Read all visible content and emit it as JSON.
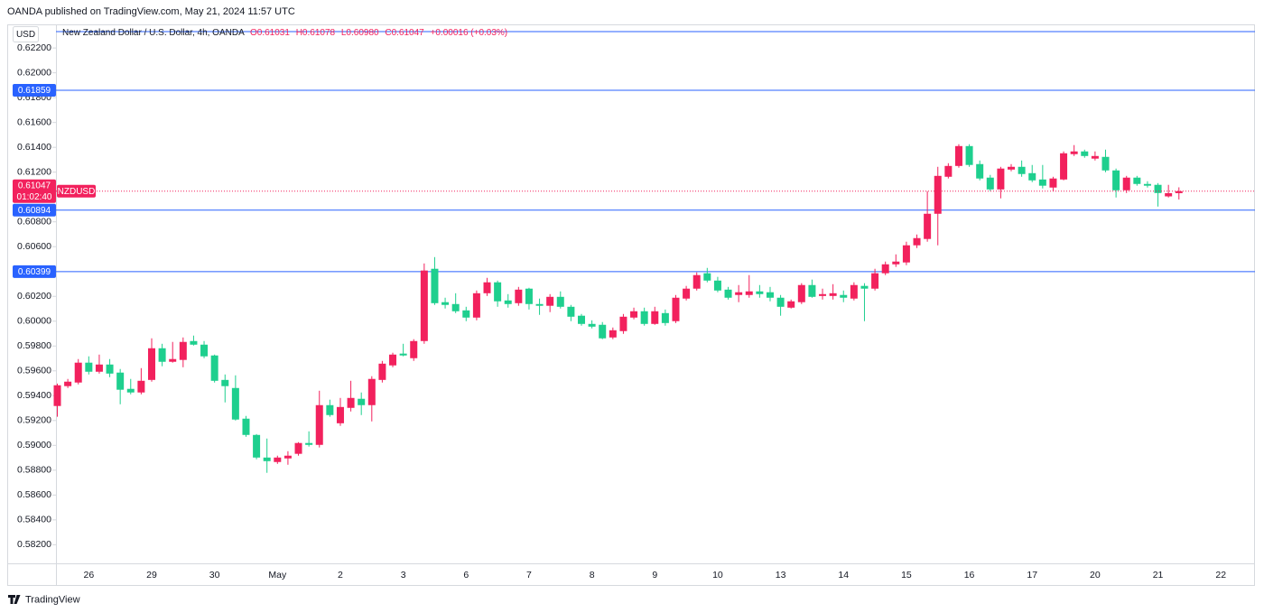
{
  "header": {
    "published": "OANDA published on TradingView.com, May 21, 2024 11:57 UTC"
  },
  "footer": {
    "brand": "TradingView"
  },
  "chart_data": {
    "type": "candlestick",
    "title": "New Zealand Dollar / U.S. Dollar, 4h, OANDA",
    "legend_values": [
      "O0.61031",
      "H0.61078",
      "L0.60980",
      "C0.61047",
      "+0.00016 (+0.03%)"
    ],
    "currency": "USD",
    "symbol": "NZDUSD",
    "countdown": "01:02:40",
    "up_color": "#f2215d",
    "down_color": "#1ecf8e",
    "line_color": "#2962ff",
    "grid": false,
    "current_price": {
      "value": 0.61047,
      "label": "0.61047"
    },
    "horizontal_lines": [
      {
        "value": 0.62332
      },
      {
        "value": 0.61859,
        "label": "0.61859"
      },
      {
        "value": 0.60894,
        "label": "0.60894"
      },
      {
        "value": 0.60399,
        "label": "0.60399"
      }
    ],
    "ylim": [
      0.5805,
      0.6239
    ],
    "yticks": [
      {
        "value": 0.582,
        "label": "0.58200"
      },
      {
        "value": 0.584,
        "label": "0.58400"
      },
      {
        "value": 0.586,
        "label": "0.58600"
      },
      {
        "value": 0.588,
        "label": "0.58800"
      },
      {
        "value": 0.59,
        "label": "0.59000"
      },
      {
        "value": 0.592,
        "label": "0.59200"
      },
      {
        "value": 0.594,
        "label": "0.59400"
      },
      {
        "value": 0.596,
        "label": "0.59600"
      },
      {
        "value": 0.598,
        "label": "0.59800"
      },
      {
        "value": 0.6,
        "label": "0.60000"
      },
      {
        "value": 0.602,
        "label": "0.60200"
      },
      {
        "value": 0.604,
        "label": "0.60400"
      },
      {
        "value": 0.606,
        "label": "0.60600"
      },
      {
        "value": 0.608,
        "label": "0.60800"
      },
      {
        "value": 0.61,
        "label": "0.61000"
      },
      {
        "value": 0.612,
        "label": "0.61200"
      },
      {
        "value": 0.614,
        "label": "0.61400"
      },
      {
        "value": 0.616,
        "label": "0.61600"
      },
      {
        "value": 0.618,
        "label": "0.61800"
      },
      {
        "value": 0.62,
        "label": "0.62000"
      },
      {
        "value": 0.622,
        "label": "0.62200"
      }
    ],
    "categories": [
      null,
      null,
      null,
      "26",
      null,
      null,
      null,
      null,
      null,
      "29",
      null,
      null,
      null,
      null,
      null,
      "30",
      null,
      null,
      null,
      null,
      null,
      "May",
      null,
      null,
      null,
      null,
      null,
      "2",
      null,
      null,
      null,
      null,
      null,
      "3",
      null,
      null,
      null,
      null,
      null,
      "6",
      null,
      null,
      null,
      null,
      null,
      "7",
      null,
      null,
      null,
      null,
      null,
      "8",
      null,
      null,
      null,
      null,
      null,
      "9",
      null,
      null,
      null,
      null,
      null,
      "10",
      null,
      null,
      null,
      null,
      null,
      "13",
      null,
      null,
      null,
      null,
      null,
      "14",
      null,
      null,
      null,
      null,
      null,
      "15",
      null,
      null,
      null,
      null,
      null,
      "16",
      null,
      null,
      null,
      null,
      null,
      "17",
      null,
      null,
      null,
      null,
      null,
      "20",
      null,
      null,
      null,
      null,
      null,
      "21",
      null,
      null,
      null,
      null,
      null,
      "22"
    ],
    "open": [
      0.59317,
      0.59477,
      0.59506,
      0.59666,
      0.59593,
      0.59651,
      0.59586,
      0.59455,
      0.59426,
      0.59527,
      0.59782,
      0.59673,
      0.59688,
      0.5984,
      0.59811,
      0.59724,
      0.59527,
      0.59462,
      0.59215,
      0.59084,
      0.58902,
      0.58866,
      0.58895,
      0.58932,
      0.59019,
      0.59004,
      0.59324,
      0.59178,
      0.59302,
      0.59375,
      0.59324,
      0.59527,
      0.59644,
      0.59739,
      0.59702,
      0.5984,
      0.60422,
      0.60153,
      0.60138,
      0.60087,
      0.60029,
      0.60225,
      0.60313,
      0.60167,
      0.60145,
      0.60262,
      0.60138,
      0.60124,
      0.60196,
      0.60116,
      0.60044,
      0.59978,
      0.59971,
      0.59869,
      0.5992,
      0.60029,
      0.6008,
      0.59978,
      0.60065,
      0.6,
      0.60182,
      0.60262,
      0.60386,
      0.60327,
      0.60254,
      0.60211,
      0.60211,
      0.6024,
      0.60233,
      0.60189,
      0.60109,
      0.60153,
      0.60291,
      0.60203,
      0.60203,
      0.60211,
      0.60182,
      0.60284,
      0.60262,
      0.60386,
      0.60458,
      0.60473,
      0.60611,
      0.60662,
      0.60865,
      0.61163,
      0.6125,
      0.6141,
      0.61265,
      0.61156,
      0.61061,
      0.61221,
      0.61243,
      0.61192,
      0.61141,
      0.61076,
      0.61141,
      0.61345,
      0.61367,
      0.61309,
      0.61323,
      0.61214,
      0.61054,
      0.61156,
      0.61105,
      0.61098,
      0.61005,
      0.61031,
      null,
      null,
      null,
      null
    ],
    "high": [
      0.59498,
      0.59535,
      0.59695,
      0.59717,
      0.59731,
      0.59695,
      0.59615,
      0.59535,
      0.59622,
      0.59862,
      0.59818,
      0.59833,
      0.59869,
      0.59884,
      0.5984,
      0.59731,
      0.59571,
      0.59564,
      0.59237,
      0.59091,
      0.59055,
      0.58917,
      0.58953,
      0.59026,
      0.59113,
      0.5944,
      0.59368,
      0.59382,
      0.5952,
      0.59426,
      0.59557,
      0.5968,
      0.59746,
      0.59818,
      0.59855,
      0.60465,
      0.60516,
      0.60189,
      0.60225,
      0.60116,
      0.60247,
      0.60349,
      0.60327,
      0.60218,
      0.60276,
      0.60269,
      0.60182,
      0.60218,
      0.6024,
      0.60131,
      0.60058,
      0.60007,
      0.59993,
      0.59949,
      0.60058,
      0.60109,
      0.60109,
      0.60116,
      0.60094,
      0.60211,
      0.60284,
      0.60393,
      0.60429,
      0.60357,
      0.60276,
      0.60291,
      0.60371,
      0.60291,
      0.60276,
      0.60211,
      0.60174,
      0.60306,
      0.60335,
      0.60262,
      0.60298,
      0.60247,
      0.60313,
      0.60306,
      0.60422,
      0.6048,
      0.60538,
      0.6064,
      0.60698,
      0.61047,
      0.61243,
      0.61272,
      0.61425,
      0.61425,
      0.61294,
      0.61178,
      0.61243,
      0.61265,
      0.61294,
      0.61258,
      0.61258,
      0.61163,
      0.61367,
      0.61418,
      0.61381,
      0.61367,
      0.61381,
      0.61229,
      0.6117,
      0.6117,
      0.61127,
      0.61112,
      0.61098,
      0.61078,
      null,
      null,
      null,
      null
    ],
    "low": [
      0.5923,
      0.59462,
      0.59491,
      0.59571,
      0.59578,
      0.59549,
      0.59331,
      0.59411,
      0.59411,
      0.59513,
      0.59637,
      0.59666,
      0.59629,
      0.59804,
      0.59702,
      0.59506,
      0.59346,
      0.592,
      0.59069,
      0.58888,
      0.58779,
      0.58851,
      0.58844,
      0.58917,
      0.5899,
      0.58983,
      0.5923,
      0.59157,
      0.59273,
      0.59244,
      0.59193,
      0.59506,
      0.59629,
      0.59717,
      0.5968,
      0.59818,
      0.60131,
      0.60102,
      0.60065,
      0.6,
      0.60007,
      0.60203,
      0.60116,
      0.60109,
      0.60124,
      0.60094,
      0.60051,
      0.60073,
      0.60102,
      0.6,
      0.59964,
      0.59942,
      0.59855,
      0.59855,
      0.59898,
      0.60015,
      0.59964,
      0.59971,
      0.59964,
      0.59985,
      0.60167,
      0.60247,
      0.60313,
      0.60233,
      0.60174,
      0.60153,
      0.60189,
      0.60189,
      0.6016,
      0.60044,
      0.60102,
      0.60138,
      0.60189,
      0.60174,
      0.60174,
      0.60153,
      0.60167,
      0.6,
      0.60247,
      0.60371,
      0.60437,
      0.60451,
      0.60589,
      0.6064,
      0.60611,
      0.61149,
      0.61236,
      0.61243,
      0.61134,
      0.61047,
      0.60989,
      0.61207,
      0.61163,
      0.6112,
      0.61069,
      0.61047,
      0.61134,
      0.6133,
      0.61316,
      0.61294,
      0.612,
      0.60996,
      0.61032,
      0.61091,
      0.61076,
      0.60923,
      0.60996,
      0.6098,
      null,
      null,
      null,
      null
    ],
    "close": [
      0.59484,
      0.59513,
      0.59666,
      0.59593,
      0.59651,
      0.59578,
      0.59448,
      0.59426,
      0.5952,
      0.59782,
      0.59673,
      0.59695,
      0.59833,
      0.59811,
      0.59717,
      0.5952,
      0.59477,
      0.59208,
      0.59084,
      0.58902,
      0.58873,
      0.58902,
      0.58917,
      0.59019,
      0.59004,
      0.59324,
      0.59244,
      0.59309,
      0.59382,
      0.59324,
      0.59535,
      0.59658,
      0.59731,
      0.59724,
      0.5984,
      0.60408,
      0.60145,
      0.60131,
      0.6008,
      0.60029,
      0.60225,
      0.60313,
      0.6016,
      0.60138,
      0.60254,
      0.60138,
      0.60124,
      0.60196,
      0.60116,
      0.60036,
      0.59978,
      0.59956,
      0.59862,
      0.59927,
      0.60036,
      0.6008,
      0.59978,
      0.6008,
      0.59985,
      0.60189,
      0.60262,
      0.60371,
      0.60327,
      0.60247,
      0.60189,
      0.60233,
      0.6024,
      0.60218,
      0.60189,
      0.60116,
      0.6016,
      0.60291,
      0.60196,
      0.60218,
      0.60225,
      0.60189,
      0.60291,
      0.60262,
      0.60386,
      0.60458,
      0.6048,
      0.60611,
      0.60669,
      0.60865,
      0.6117,
      0.6125,
      0.6141,
      0.61258,
      0.61149,
      0.61061,
      0.61229,
      0.61243,
      0.61185,
      0.61134,
      0.61091,
      0.61149,
      0.61352,
      0.61367,
      0.6133,
      0.6133,
      0.61214,
      0.61054,
      0.61156,
      0.61105,
      0.61091,
      0.61032,
      0.61031,
      0.61047,
      null,
      null,
      null,
      null
    ]
  }
}
